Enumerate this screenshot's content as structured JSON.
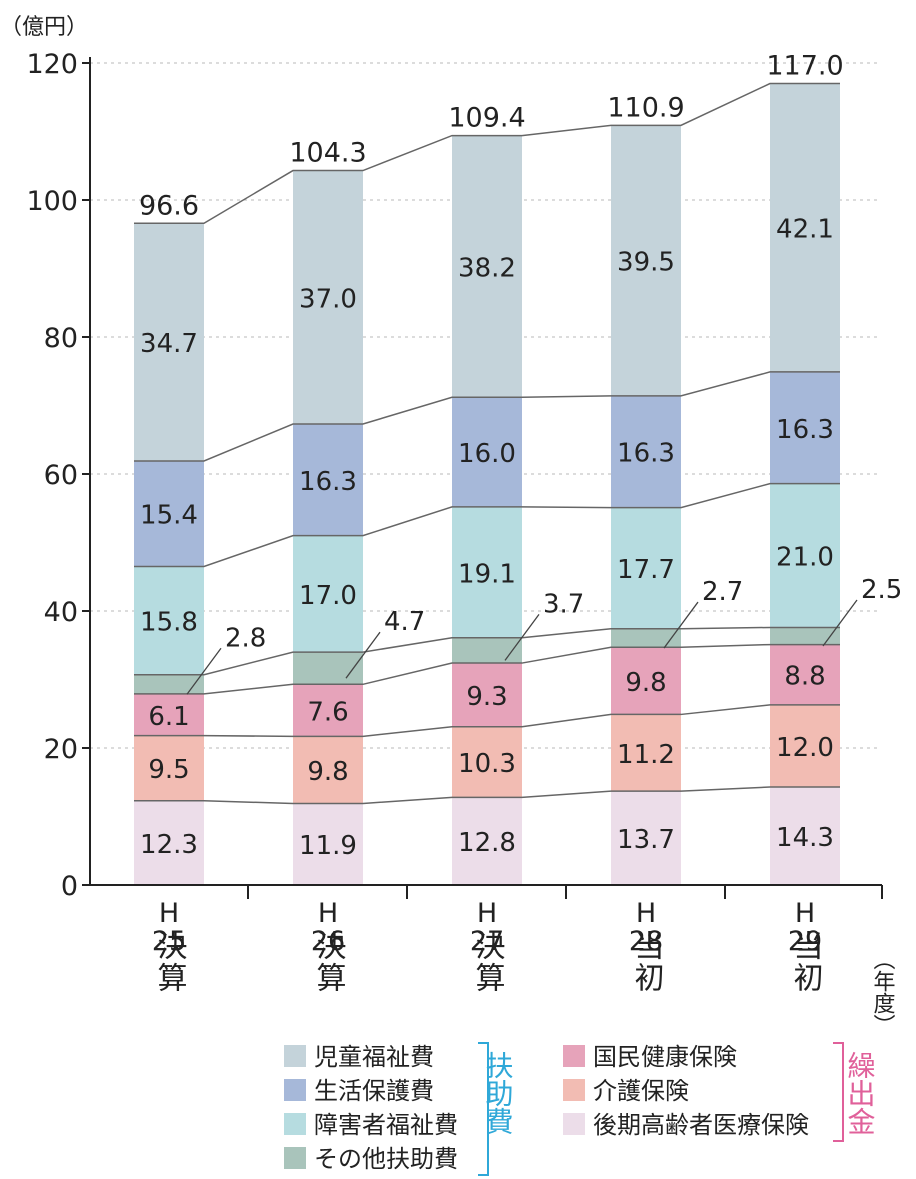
{
  "chart_data": {
    "type": "bar",
    "stacked": true,
    "unit_label": "（億円）",
    "xaxis_unit_label": "（年度）",
    "ylim": [
      0,
      120
    ],
    "yticks": [
      "0",
      "20",
      "40",
      "60",
      "80",
      "100",
      "120"
    ],
    "grid": true,
    "categories": [
      {
        "era": "H",
        "year": "25",
        "kind": "決算"
      },
      {
        "era": "H",
        "year": "26",
        "kind": "決算"
      },
      {
        "era": "H",
        "year": "27",
        "kind": "決算"
      },
      {
        "era": "H",
        "year": "28",
        "kind": "当初"
      },
      {
        "era": "H",
        "year": "29",
        "kind": "当初"
      }
    ],
    "series": [
      {
        "name": "後期高齢者医療保険",
        "color": "#ecdde9",
        "values": [
          12.3,
          11.9,
          12.8,
          13.7,
          14.3
        ],
        "labels": [
          "12.3",
          "11.9",
          "12.8",
          "13.7",
          "14.3"
        ]
      },
      {
        "name": "介護保険",
        "color": "#f2bcb3",
        "values": [
          9.5,
          9.8,
          10.3,
          11.2,
          12.0
        ],
        "labels": [
          "9.5",
          "9.8",
          "10.3",
          "11.2",
          "12.0"
        ]
      },
      {
        "name": "国民健康保険",
        "color": "#e6a3ba",
        "values": [
          6.1,
          7.6,
          9.3,
          9.8,
          8.8
        ],
        "labels": [
          "6.1",
          "7.6",
          "9.3",
          "9.8",
          "8.8"
        ]
      },
      {
        "name": "その他扶助費",
        "color": "#a9c4bb",
        "values": [
          2.8,
          4.7,
          3.7,
          2.7,
          2.5
        ],
        "labels": [
          "2.8",
          "4.7",
          "3.7",
          "2.7",
          "2.5"
        ]
      },
      {
        "name": "障害者福祉費",
        "color": "#b6dce0",
        "values": [
          15.8,
          17.0,
          19.1,
          17.7,
          21.0
        ],
        "labels": [
          "15.8",
          "17.0",
          "19.1",
          "17.7",
          "21.0"
        ]
      },
      {
        "name": "生活保護費",
        "color": "#a6b8d9",
        "values": [
          15.4,
          16.3,
          16.0,
          16.3,
          16.3
        ],
        "labels": [
          "15.4",
          "16.3",
          "16.0",
          "16.3",
          "16.3"
        ]
      },
      {
        "name": "児童福祉費",
        "color": "#c4d3da",
        "values": [
          34.7,
          37.0,
          38.2,
          39.5,
          42.1
        ],
        "labels": [
          "34.7",
          "37.0",
          "38.2",
          "39.5",
          "42.1"
        ]
      }
    ],
    "totals": [
      "96.6",
      "104.3",
      "109.4",
      "110.9",
      "117.0"
    ],
    "legend": {
      "left_group": {
        "label": "扶助費",
        "color": "#2fa8d8",
        "items": [
          "児童福祉費",
          "生活保護費",
          "障害者福祉費",
          "その他扶助費"
        ]
      },
      "right_group": {
        "label": "繰出金",
        "color": "#e0609a",
        "items": [
          "国民健康保険",
          "介護保険",
          "後期高齢者医療保険"
        ]
      }
    }
  }
}
